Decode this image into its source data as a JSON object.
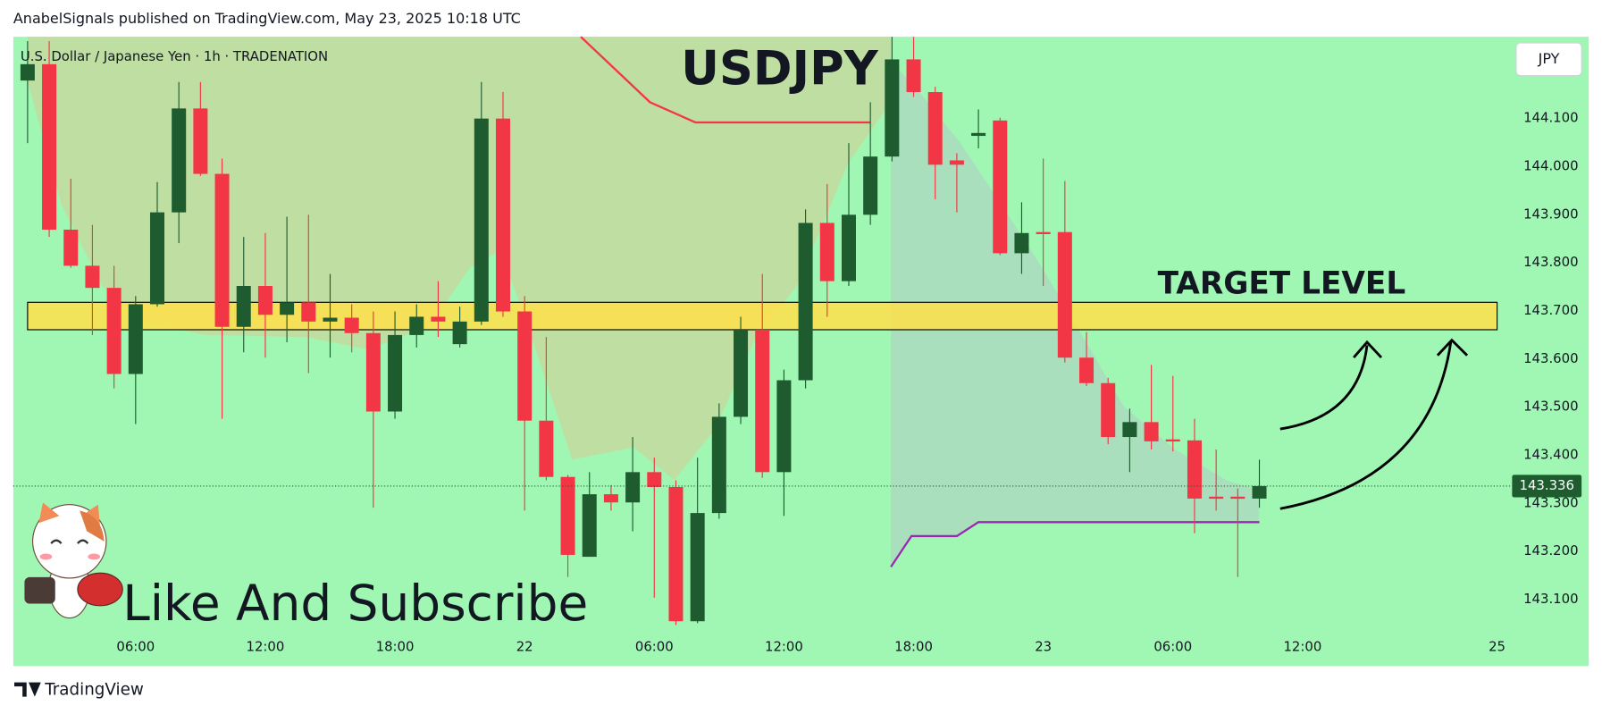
{
  "header": "AnabelSignals published on TradingView.com, May 23, 2025 10:18 UTC",
  "footer": "TradingView",
  "chart_data": {
    "type": "candlestick",
    "title": "USDJPY",
    "subtitle": "U.S. Dollar / Japanese Yen · 1h · TRADENATION",
    "currency": "JPY",
    "annotations": {
      "target": "TARGET LEVEL",
      "promo": "Like And Subscribe"
    },
    "x": [
      0,
      1,
      2,
      3,
      4,
      5,
      6,
      7,
      8,
      9,
      10,
      11,
      12,
      13,
      14,
      15,
      16,
      17,
      18,
      19,
      20,
      21,
      22,
      23,
      24,
      25,
      26,
      27,
      28,
      29,
      30,
      31,
      32,
      33,
      34,
      35,
      36,
      37,
      38,
      39,
      40,
      41,
      42,
      43,
      44,
      45,
      46,
      47,
      48,
      49,
      50,
      51,
      52,
      53,
      54,
      55,
      56,
      57
    ],
    "open": [
      144.179,
      144.213,
      143.869,
      143.794,
      143.748,
      143.569,
      143.714,
      143.905,
      144.121,
      143.985,
      143.667,
      143.752,
      143.692,
      143.718,
      143.678,
      143.686,
      143.654,
      143.491,
      143.65,
      143.688,
      143.631,
      143.678,
      144.1,
      143.699,
      143.472,
      143.355,
      143.189,
      143.319,
      143.302,
      143.365,
      143.334,
      143.055,
      143.28,
      143.48,
      143.661,
      143.365,
      143.556,
      143.883,
      143.762,
      143.9,
      144.021,
      144.223,
      144.155,
      144.013,
      144.064,
      144.096,
      143.82,
      143.864,
      143.864,
      143.603,
      143.55,
      143.438,
      143.469,
      143.433,
      143.431,
      143.314,
      143.314,
      143.31
    ],
    "high": [
      144.261,
      144.261,
      143.975,
      143.879,
      143.794,
      143.731,
      143.968,
      144.176,
      144.176,
      144.017,
      143.854,
      143.862,
      143.896,
      143.9,
      143.777,
      143.714,
      143.699,
      143.699,
      143.714,
      143.762,
      143.709,
      144.176,
      144.155,
      143.731,
      143.646,
      143.359,
      143.365,
      143.338,
      143.438,
      143.395,
      143.348,
      143.395,
      143.508,
      143.688,
      143.777,
      143.578,
      143.911,
      143.964,
      144.049,
      144.134,
      144.27,
      144.27,
      144.166,
      144.028,
      144.119,
      144.102,
      143.926,
      144.017,
      143.97,
      143.656,
      143.561,
      143.497,
      143.588,
      143.565,
      143.476,
      143.412,
      143.331,
      143.391
    ],
    "low": [
      144.049,
      143.854,
      143.79,
      143.65,
      143.539,
      143.465,
      143.709,
      143.841,
      143.981,
      143.476,
      143.614,
      143.603,
      143.635,
      143.571,
      143.603,
      143.614,
      143.291,
      143.476,
      143.624,
      143.646,
      143.624,
      143.671,
      143.688,
      143.285,
      143.348,
      143.147,
      143.189,
      143.285,
      143.242,
      143.104,
      143.047,
      143.051,
      143.268,
      143.465,
      143.353,
      143.274,
      143.539,
      143.688,
      143.752,
      143.879,
      144.011,
      144.145,
      143.932,
      143.905,
      144.038,
      143.816,
      143.777,
      143.752,
      143.593,
      143.544,
      143.423,
      143.365,
      143.412,
      143.408,
      143.238,
      143.285,
      143.147,
      143.291
    ],
    "close": [
      144.213,
      143.869,
      143.794,
      143.748,
      143.569,
      143.714,
      143.905,
      144.121,
      143.985,
      143.667,
      143.752,
      143.692,
      143.718,
      143.678,
      143.686,
      143.654,
      143.491,
      143.65,
      143.688,
      143.678,
      143.678,
      144.1,
      143.699,
      143.472,
      143.355,
      143.193,
      143.319,
      143.302,
      143.365,
      143.334,
      143.055,
      143.28,
      143.48,
      143.661,
      143.365,
      143.556,
      143.883,
      143.762,
      143.9,
      144.021,
      144.223,
      144.155,
      144.004,
      144.004,
      144.07,
      143.82,
      143.862,
      143.86,
      143.603,
      143.55,
      143.438,
      143.469,
      143.429,
      143.429,
      143.31,
      143.31,
      143.31,
      143.336
    ],
    "up_color": "#1e5c30",
    "down_color": "#f23645",
    "xlim": [
      -0.662,
      68.6
    ],
    "xticks": [
      {
        "value": 5,
        "label": "06:00"
      },
      {
        "value": 11,
        "label": "12:00"
      },
      {
        "value": 17,
        "label": "18:00"
      },
      {
        "value": 23,
        "label": "22"
      },
      {
        "value": 29,
        "label": "06:00"
      },
      {
        "value": 35,
        "label": "12:00"
      },
      {
        "value": 41,
        "label": "18:00"
      },
      {
        "value": 47,
        "label": "23"
      },
      {
        "value": 53,
        "label": "06:00"
      },
      {
        "value": 59,
        "label": "12:00"
      },
      {
        "value": 68,
        "label": "25"
      }
    ],
    "ylim": [
      142.962,
      144.27
    ],
    "yticks": [
      {
        "value": 143.1,
        "label": "143.100"
      },
      {
        "value": 143.2,
        "label": "143.200"
      },
      {
        "value": 143.3,
        "label": "143.300"
      },
      {
        "value": 143.4,
        "label": "143.400"
      },
      {
        "value": 143.5,
        "label": "143.500"
      },
      {
        "value": 143.6,
        "label": "143.600"
      },
      {
        "value": 143.7,
        "label": "143.700"
      },
      {
        "value": 143.8,
        "label": "143.800"
      },
      {
        "value": 143.9,
        "label": "143.900"
      },
      {
        "value": 144.0,
        "label": "144.000"
      },
      {
        "value": 144.1,
        "label": "144.100"
      }
    ],
    "grid": false,
    "target_zone": {
      "x": [
        0,
        68
      ],
      "y": [
        143.661,
        143.718
      ],
      "color": "#ffe14a"
    },
    "lines": [
      {
        "color": "#f23645",
        "x": [
          25.6,
          28.8,
          30.9,
          39.0
        ],
        "values": [
          144.27,
          144.134,
          144.092,
          144.092
        ]
      },
      {
        "color": "#9c27b0",
        "x": [
          39.95,
          40.9,
          43.0,
          44.0,
          57.0
        ],
        "values": [
          143.168,
          143.232,
          143.232,
          143.261,
          143.261
        ]
      }
    ]
  }
}
